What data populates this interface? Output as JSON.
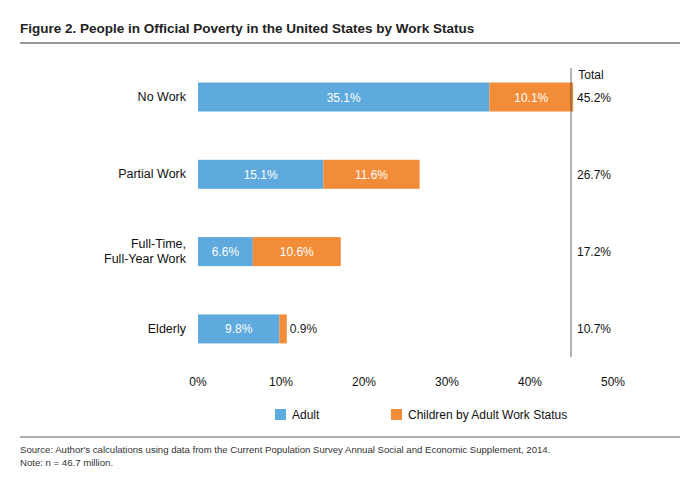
{
  "chart_data": {
    "type": "bar",
    "orientation": "horizontal",
    "stacked": true,
    "data_labels": true,
    "grid": false,
    "legend": "bottom",
    "title": "Figure 2. People in Official Poverty in the United States by Work Status",
    "categories": [
      "No Work",
      "Partial Work",
      "Full-Time,\nFull-Year Work",
      "Elderly"
    ],
    "series": [
      {
        "name": "Adult",
        "color": "#5ea9dd",
        "values": [
          35.1,
          15.1,
          6.6,
          9.8
        ],
        "value_labels": [
          "35.1%",
          "15.1%",
          "6.6%",
          "9.8%"
        ]
      },
      {
        "name": "Children by Adult Work Status",
        "color": "#f28c38",
        "values": [
          10.1,
          11.6,
          10.6,
          0.9
        ],
        "value_labels": [
          "10.1%",
          "11.6%",
          "10.6%",
          "0.9%"
        ]
      }
    ],
    "totals": {
      "title": "Total",
      "values": [
        45.2,
        26.7,
        17.2,
        10.7
      ],
      "value_labels": [
        "45.2%",
        "26.7%",
        "17.2%",
        "10.7%"
      ]
    },
    "xlim": [
      0,
      50
    ],
    "xticks": [
      {
        "value": 0,
        "label": "0%"
      },
      {
        "value": 10,
        "label": "10%"
      },
      {
        "value": 20,
        "label": "20%"
      },
      {
        "value": 30,
        "label": "30%"
      },
      {
        "value": 40,
        "label": "40%"
      },
      {
        "value": 50,
        "label": "50%"
      }
    ],
    "source": "Source: Author's calculations using data from the Current Population Survey Annual Social and Economic Supplement, 2014.",
    "note": "Note: n = 46.7 million."
  }
}
